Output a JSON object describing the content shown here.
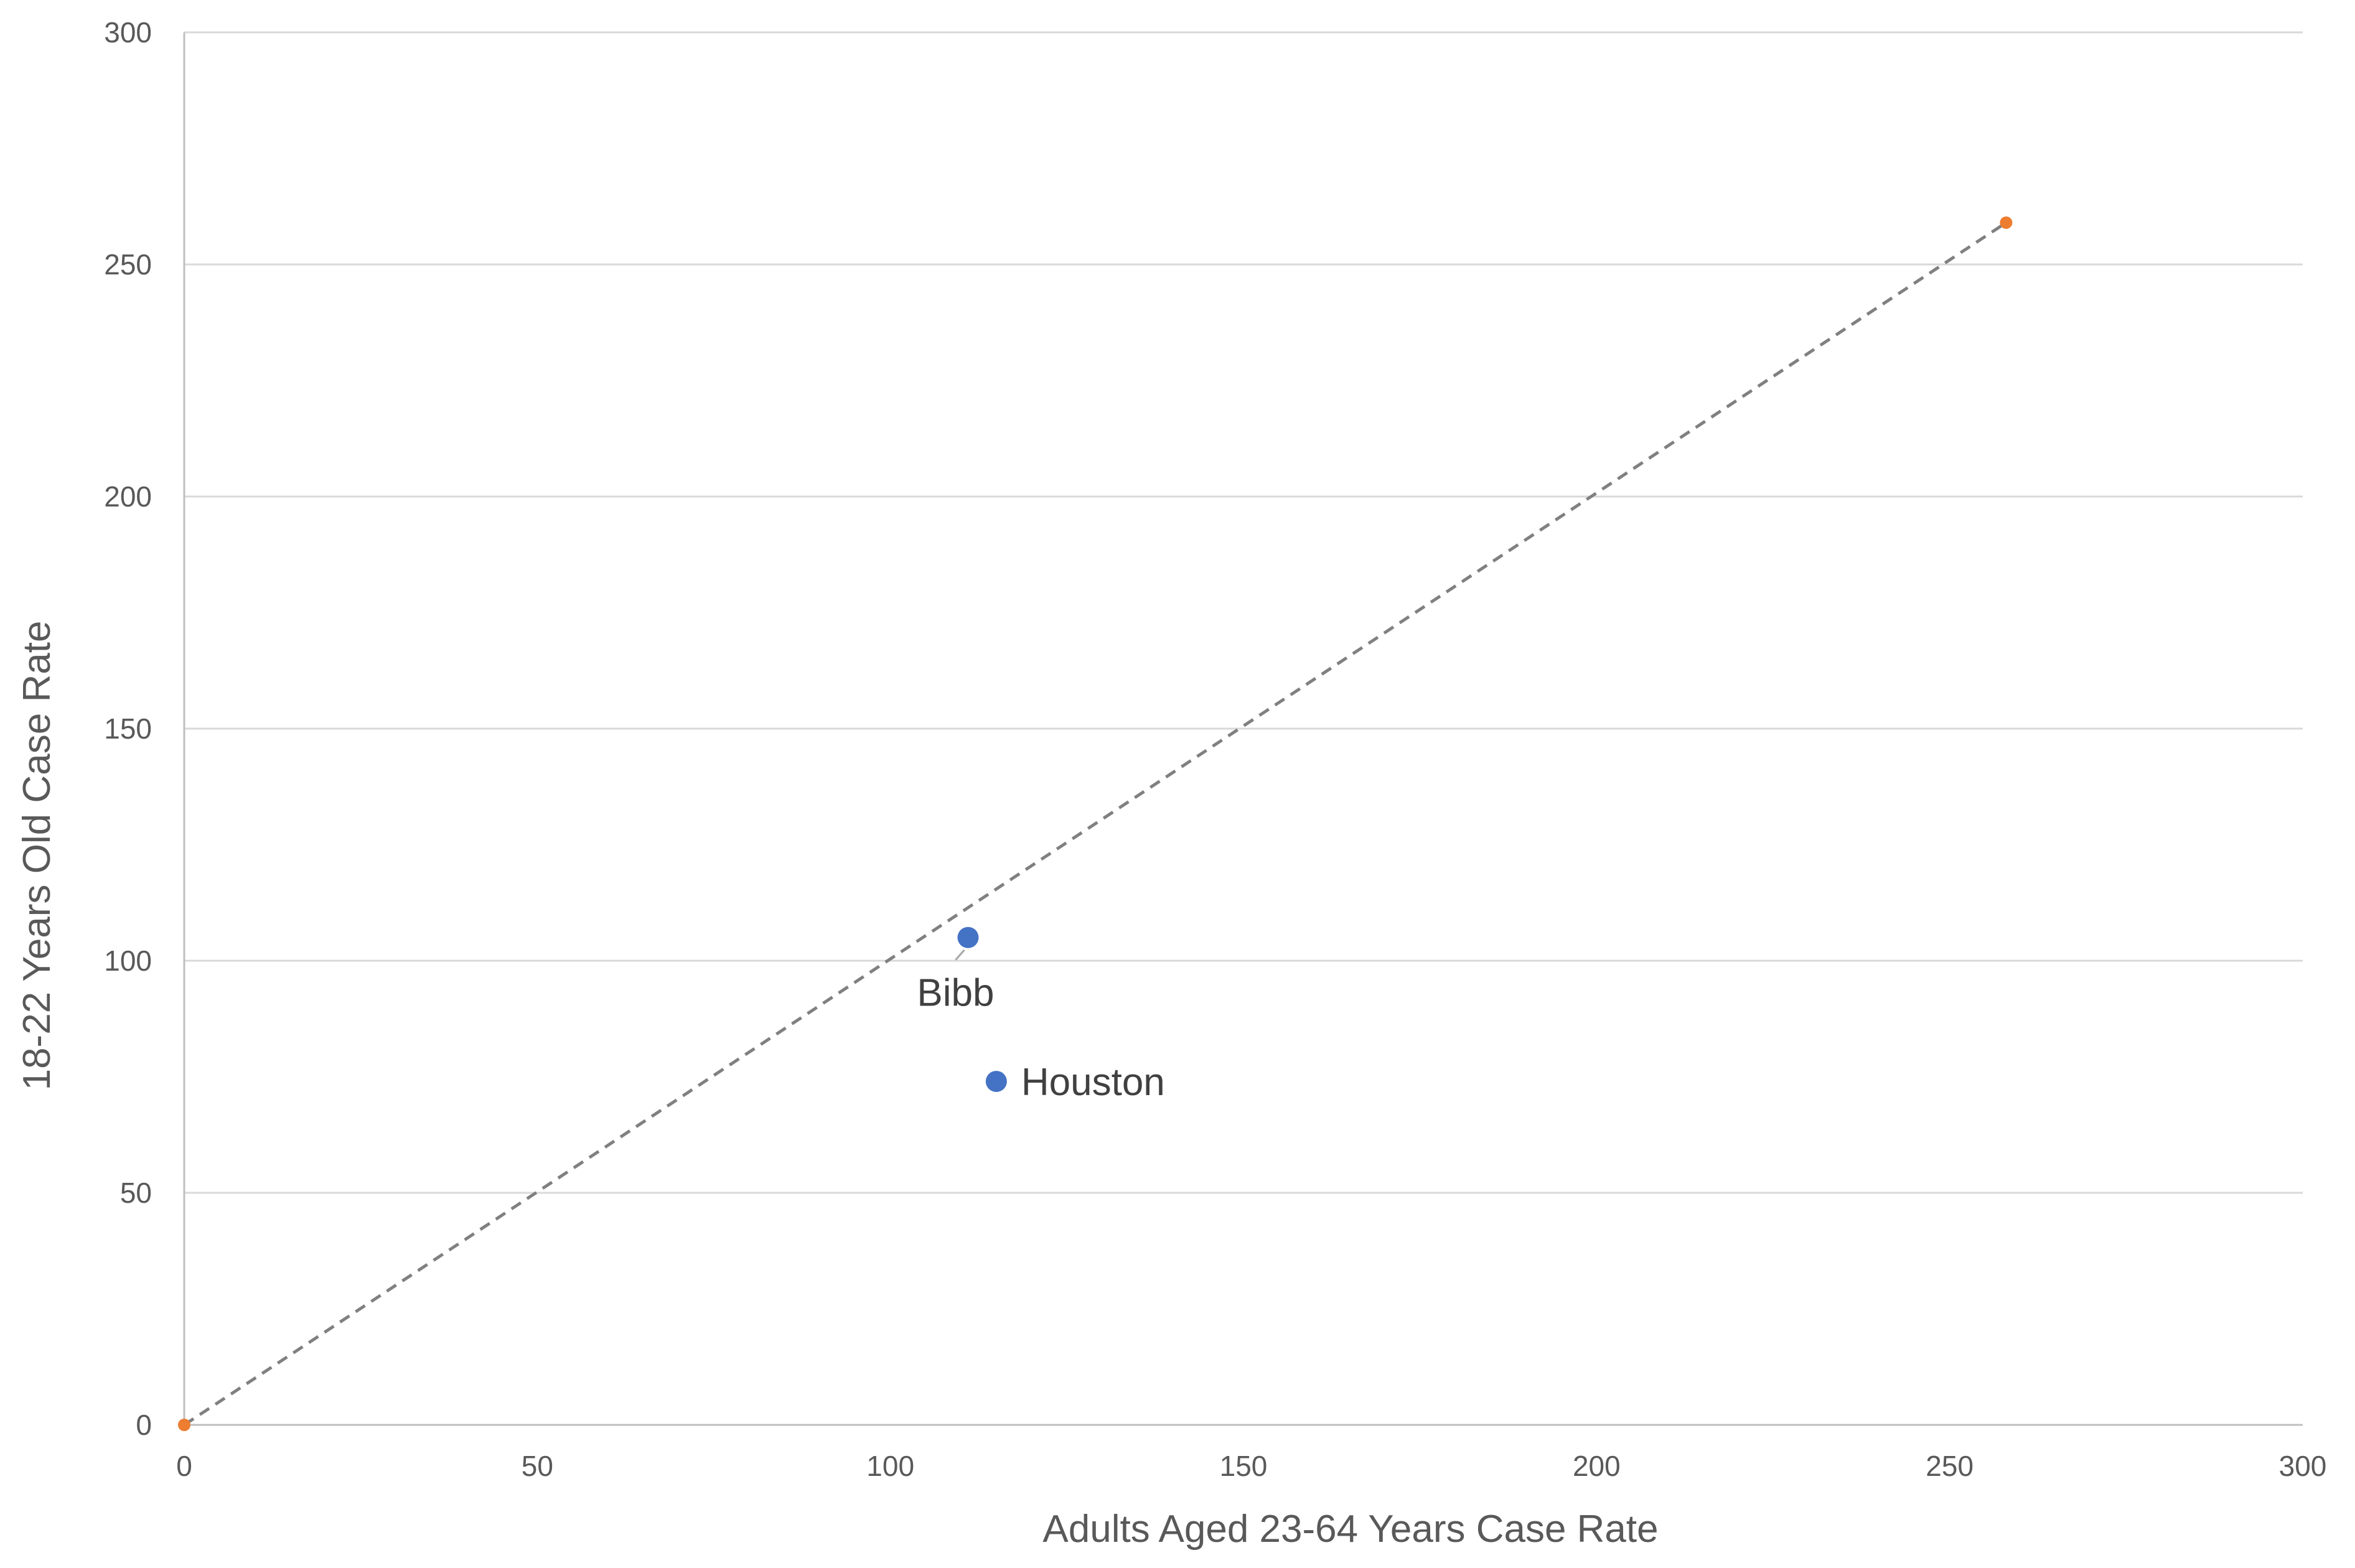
{
  "chart_data": {
    "type": "scatter",
    "title": "",
    "xlabel": "Adults Aged 23-64 Years Case Rate",
    "ylabel": "18-22 Years Old Case Rate",
    "xlim": [
      0,
      300
    ],
    "ylim": [
      0,
      300
    ],
    "x_ticks": [
      0,
      50,
      100,
      150,
      200,
      250,
      300
    ],
    "y_ticks": [
      0,
      50,
      100,
      150,
      200,
      250,
      300
    ],
    "grid": "horizontal",
    "legend": "none",
    "series": [
      {
        "color": "#4472C4",
        "points": [
          {
            "x": 111,
            "y": 105,
            "label": "Bibb"
          },
          {
            "x": 115,
            "y": 74,
            "label": "Houston"
          }
        ]
      },
      {
        "color": "#ED7D31",
        "line_color": "#808080",
        "line_style": "dashed",
        "points": [
          {
            "x": 0,
            "y": 0
          },
          {
            "x": 258,
            "y": 259
          }
        ]
      }
    ]
  }
}
